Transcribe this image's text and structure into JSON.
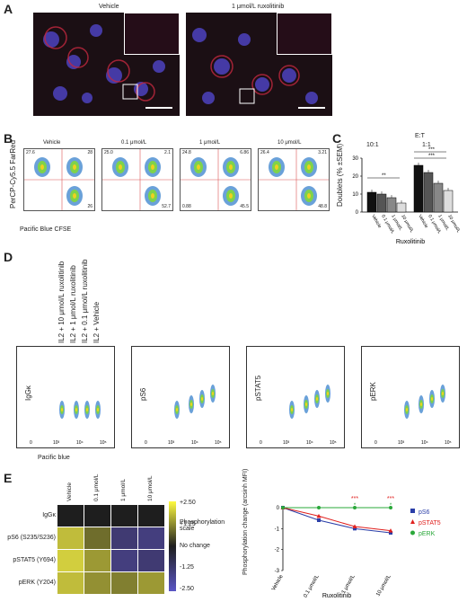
{
  "panels": {
    "A": "A",
    "B": "B",
    "C": "C",
    "D": "D",
    "E": "E"
  },
  "a": {
    "left_title": "Vehicle",
    "right_title": "1 μmol/L ruxolitinib"
  },
  "b": {
    "titles": [
      "Vehicle",
      "0.1 μmol/L",
      "1 μmol/L",
      "10 μmol/L"
    ],
    "quad": [
      [
        "27.6",
        "28",
        "",
        "26"
      ],
      [
        "25.0",
        "2.1",
        "",
        "52.7"
      ],
      [
        "24.8",
        "6.86",
        "0.88",
        "45.5"
      ],
      [
        "26.4",
        "3.21",
        "",
        "48.8"
      ]
    ],
    "ylabel": "PerCP-Cy5.5 FarRed",
    "xlabel": "Pacific Blue CFSE"
  },
  "c": {
    "header": "E:T",
    "group1": "10:1",
    "group2": "1:1",
    "ylabel": "Doublets (% ±SEM)",
    "xlabel": "Ruxolitinib",
    "xticks": [
      "Vehicle",
      "0.1 μmol/L",
      "1 μmol/L",
      "10 μmol/L"
    ],
    "yticks": [
      "30",
      "20",
      "10",
      "0"
    ],
    "sig1": "**",
    "sig2": "***",
    "sig3": "***"
  },
  "chart_data": {
    "type": "bar",
    "categories": [
      "Vehicle",
      "0.1 μmol/L",
      "1 μmol/L",
      "10 μmol/L"
    ],
    "series": [
      {
        "name": "10:1",
        "values": [
          11,
          10,
          8,
          5
        ]
      },
      {
        "name": "1:1",
        "values": [
          26,
          22,
          16,
          12
        ]
      }
    ],
    "ylabel": "Doublets (% ±SEM)",
    "xlabel": "Ruxolitinib",
    "ylim": [
      0,
      30
    ]
  },
  "d": {
    "arrows": [
      "IL2 + 10 μmol/L ruxolitinib",
      "IL2 + 1 μmol/L ruxolitinib",
      "IL2 + 0.1 μmol/L ruxolitinib",
      "IL2 + Vehicle"
    ],
    "ylabels": [
      "IgGκ",
      "pS6",
      "pSTAT5",
      "pERK"
    ],
    "xticks": [
      "0",
      "10³",
      "10⁴",
      "10⁵"
    ],
    "xlabel": "Pacific blue"
  },
  "e": {
    "cols": [
      "Vehicle",
      "0.1 μmol/L",
      "1 μmol/L",
      "10 μmol/L"
    ],
    "rows": [
      "IgGκ",
      "pS6 (S235/S236)",
      "pSTAT5 (Y694)",
      "pERK (Y204)"
    ],
    "scale": [
      "+2.50",
      "+1.25",
      "No change",
      "-1.25",
      "-2.50"
    ],
    "scale_title": "Phosphorylation scale",
    "heat": [
      [
        0,
        0,
        0,
        0
      ],
      [
        1.8,
        0.9,
        -1.4,
        -1.6
      ],
      [
        2.0,
        1.4,
        -1.6,
        -1.4
      ],
      [
        1.8,
        1.3,
        1.1,
        1.4
      ]
    ],
    "line_ylabel": "Phosphorylation change (arcsinh MFI)",
    "line_xlabel": "Ruxolitinib",
    "line_xticks": [
      "Vehicle",
      "0.1 μmol/L",
      "1 μmol/L",
      "10 μmol/L"
    ],
    "line_yticks": [
      "0",
      "-1",
      "-2",
      "-3"
    ],
    "legend": [
      "pS6",
      "pSTAT5",
      "pERK"
    ],
    "legend_colors": [
      "#2a3ea8",
      "#e0201e",
      "#2aa83a"
    ],
    "line_series": [
      [
        0,
        -0.6,
        -1.0,
        -1.2
      ],
      [
        0,
        -0.4,
        -0.9,
        -1.1
      ],
      [
        0,
        0,
        0,
        0
      ]
    ],
    "sig": [
      "***",
      "***"
    ],
    "sig_small": [
      "*",
      "*"
    ]
  }
}
